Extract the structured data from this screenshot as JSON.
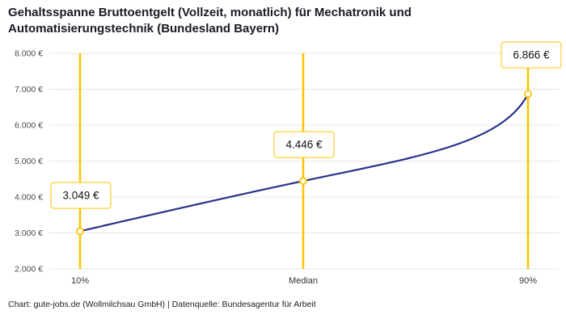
{
  "title": {
    "line1": "Gehaltsspanne Bruttoentgelt (Vollzeit, monatlich) für Mechatronik und",
    "line2": "Automatisierungstechnik (Bundesland Bayern)"
  },
  "chart_data": {
    "type": "line",
    "title": "Gehaltsspanne Bruttoentgelt (Vollzeit, monatlich) für Mechatronik und Automatisierungstechnik (Bundesland Bayern)",
    "categories": [
      "10%",
      "Median",
      "90%"
    ],
    "values": [
      3049,
      4446,
      6866
    ],
    "value_labels": [
      "3.049 €",
      "4.446 €",
      "6.866 €"
    ],
    "ylim": [
      2000,
      8000
    ],
    "ytick_step": 1000,
    "ytick_labels": [
      "2.000 €",
      "3.000 €",
      "4.000 €",
      "5.000 €",
      "6.000 €",
      "7.000 €",
      "8.000 €"
    ],
    "grid": true,
    "legend": "none",
    "accent_color": "#fdc300",
    "line_color": "#26348c"
  },
  "footer": {
    "text": "Chart: gute-jobs.de (Wollmilchsau GmbH) | Datenquelle: Bundesagentur für Arbeit"
  }
}
